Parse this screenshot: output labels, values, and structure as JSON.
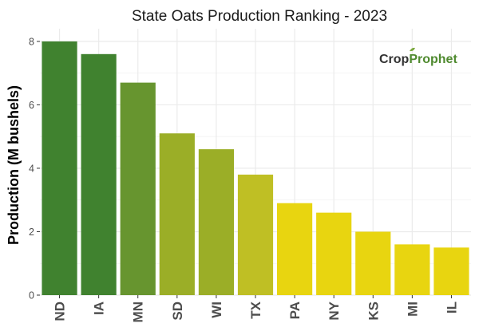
{
  "chart_data": {
    "type": "bar",
    "title": "State Oats Production Ranking - 2023",
    "xlabel": "",
    "ylabel": "Production (M bushels)",
    "ylim": [
      0,
      8.4
    ],
    "yticks": [
      0,
      2,
      4,
      6,
      8
    ],
    "grid": true,
    "categories": [
      "ND",
      "IA",
      "MN",
      "SD",
      "WI",
      "TX",
      "PA",
      "NY",
      "KS",
      "MI",
      "IL"
    ],
    "values": [
      8.0,
      7.6,
      6.7,
      5.1,
      4.6,
      3.8,
      2.9,
      2.6,
      2.0,
      1.6,
      1.5
    ],
    "colors": [
      "#40822f",
      "#40822f",
      "#67952f",
      "#9bae27",
      "#9bae27",
      "#bfbf24",
      "#e8d510",
      "#e8d510",
      "#e8d510",
      "#e8d510",
      "#e8d510"
    ]
  },
  "logo": {
    "part1": "Crop",
    "part2": "Prophet"
  }
}
